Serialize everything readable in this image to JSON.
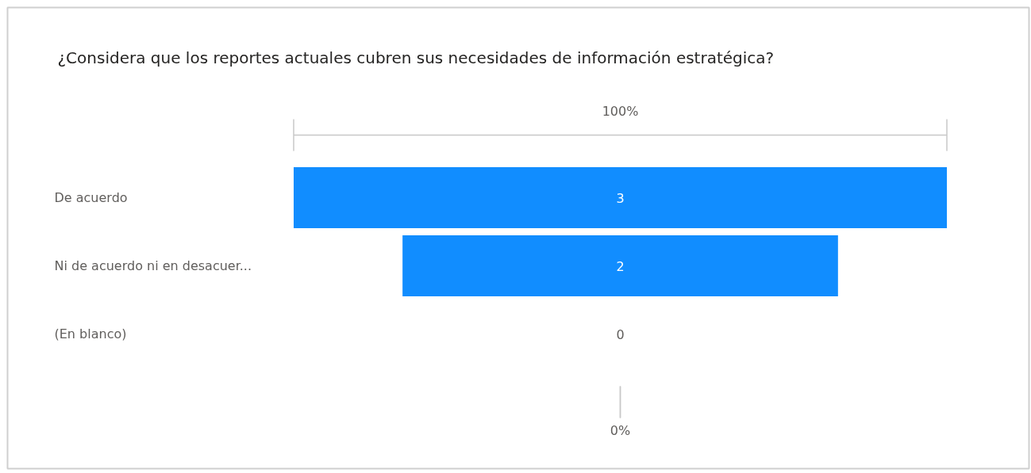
{
  "chart_data": {
    "type": "other",
    "title": "¿Considera que los reportes actuales cubren sus necesidades de información estratégica?",
    "categories": [
      "De acuerdo",
      "Ni de acuerdo ni en desacuer...",
      "(En blanco)"
    ],
    "values": [
      3,
      2,
      0
    ],
    "color": "#118dff",
    "data_labels": true,
    "annotations": [
      "100%",
      "0%"
    ]
  }
}
